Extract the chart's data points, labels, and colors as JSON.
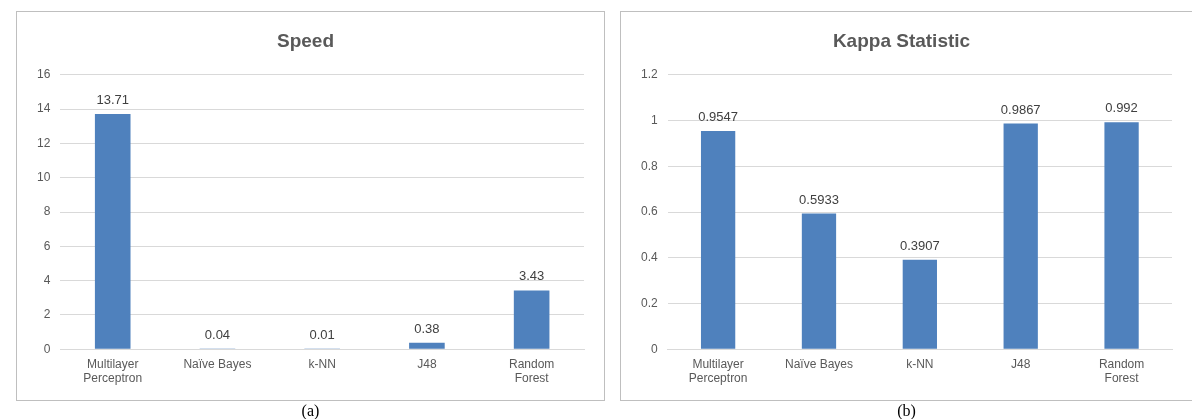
{
  "chart_data": [
    {
      "type": "bar",
      "title": "Speed",
      "categories": [
        "Multilayer Perceptron",
        "Naïve Bayes",
        "k-NN",
        "J48",
        "Random Forest"
      ],
      "values": [
        13.71,
        0.04,
        0.01,
        0.38,
        3.43
      ],
      "color": "#4f81bd",
      "ylim": [
        0,
        16
      ],
      "yticks": [
        0,
        2,
        4,
        6,
        8,
        10,
        12,
        14,
        16
      ],
      "grid": "y",
      "data_labels": true,
      "legend": false,
      "annotations": [
        "(a)"
      ]
    },
    {
      "type": "bar",
      "title": "Kappa Statistic",
      "categories": [
        "Multilayer Perceptron",
        "Naïve Bayes",
        "k-NN",
        "J48",
        "Random Forest"
      ],
      "values": [
        0.9547,
        0.5933,
        0.3907,
        0.9867,
        0.992
      ],
      "color": "#4f81bd",
      "ylim": [
        0,
        1.2
      ],
      "yticks": [
        0,
        0.2,
        0.4,
        0.6,
        0.8,
        1,
        1.2
      ],
      "grid": "y",
      "data_labels": true,
      "legend": false,
      "annotations": [
        "(b)"
      ]
    }
  ]
}
